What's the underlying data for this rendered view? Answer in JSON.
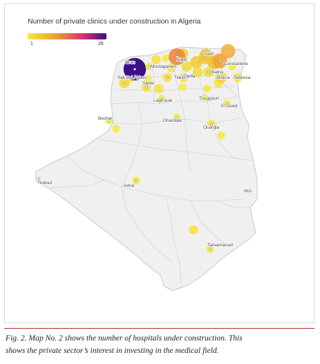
{
  "legend": {
    "title": "Number of private clinics under construction in Algeria",
    "min_label": "1",
    "max_label": "26",
    "min_value": 1,
    "max_value": 26,
    "color_low": "#f4ea3c",
    "color_mid": "#f0a030",
    "color_high": "#d92f6e",
    "color_top": "#3c0f88"
  },
  "map": {
    "country_fill": "#f0f0f0",
    "border_color": "#c8c8c8"
  },
  "cities": [
    {
      "name": "Oran",
      "value": 26
    },
    {
      "name": "Mostaganem",
      "value": 1
    },
    {
      "name": "Alger",
      "value": 12
    },
    {
      "name": "Constantine",
      "value": 9
    },
    {
      "name": "Setif",
      "value": 5
    },
    {
      "name": "Batna",
      "value": 3
    },
    {
      "name": "Biskra",
      "value": 4
    },
    {
      "name": "Tebessa",
      "value": 2
    },
    {
      "name": "Saida",
      "value": 2
    },
    {
      "name": "Sidi Bel Abbes",
      "value": 3
    },
    {
      "name": "Tiaret",
      "value": 2
    },
    {
      "name": "Laghouat",
      "value": 1
    },
    {
      "name": "Djelfa",
      "value": 2
    },
    {
      "name": "Touggourt",
      "value": 1
    },
    {
      "name": "El Oued",
      "value": 1
    },
    {
      "name": "Ghardaia",
      "value": 1
    },
    {
      "name": "Ouargla",
      "value": 2
    },
    {
      "name": "Bechar",
      "value": 1
    },
    {
      "name": "Adrar",
      "value": 1
    },
    {
      "name": "Tindouf",
      "value": null
    },
    {
      "name": "Illizi",
      "value": null
    },
    {
      "name": "Tamanrasset",
      "value": 1
    }
  ],
  "extra_points": [
    {
      "value": 4
    },
    {
      "value": 6
    },
    {
      "value": 8
    },
    {
      "value": 7
    },
    {
      "value": 5
    },
    {
      "value": 3
    },
    {
      "value": 2
    },
    {
      "value": 1
    },
    {
      "value": 2
    },
    {
      "value": 3
    },
    {
      "value": 1
    },
    {
      "value": 2
    },
    {
      "value": 1
    },
    {
      "value": 2
    },
    {
      "value": 1
    },
    {
      "value": 1
    },
    {
      "value": 1
    },
    {
      "value": 1
    },
    {
      "value": 2
    },
    {
      "value": 1
    }
  ],
  "caption": {
    "line1": "Fig. 2. Map No. 2 shows the number of hospitals under construction. This",
    "line2": "shows the private sector’s interest in investing in the medical field."
  }
}
